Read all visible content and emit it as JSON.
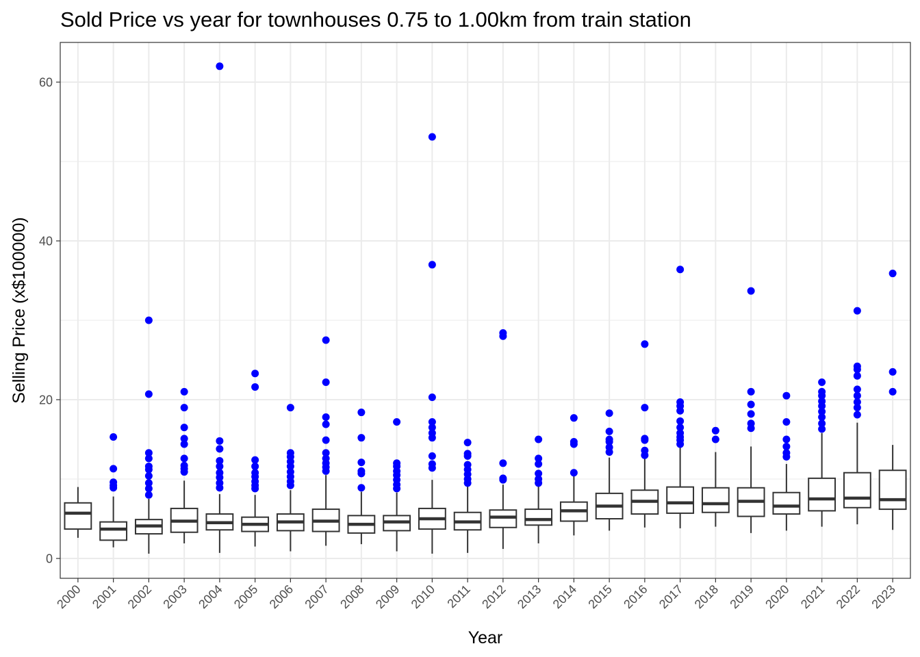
{
  "chart_data": {
    "type": "box",
    "title": "Sold Price vs year for townhouses 0.75 to 1.00km from train station",
    "xlabel": "Year",
    "ylabel": "Selling Price (x$100000)",
    "ylim": [
      -2.5,
      65
    ],
    "yticks": [
      0,
      20,
      40,
      60
    ],
    "y_minor_ticks": [
      10,
      30,
      50
    ],
    "grid": true,
    "legend": "none",
    "colors": {
      "box_line": "#333333",
      "outlier": "#0000ff",
      "grid": "#ebebeb",
      "panel_border": "#333333"
    },
    "categories": [
      "2000",
      "2001",
      "2002",
      "2003",
      "2004",
      "2005",
      "2006",
      "2007",
      "2008",
      "2009",
      "2010",
      "2011",
      "2012",
      "2013",
      "2014",
      "2015",
      "2016",
      "2017",
      "2018",
      "2019",
      "2020",
      "2021",
      "2022",
      "2023"
    ],
    "boxes": [
      {
        "year": "2000",
        "whisker_low": 2.6,
        "q1": 3.7,
        "median": 5.7,
        "q3": 7.0,
        "whisker_high": 9.0,
        "outliers": []
      },
      {
        "year": "2001",
        "whisker_low": 1.4,
        "q1": 2.3,
        "median": 3.7,
        "q3": 4.6,
        "whisker_high": 7.8,
        "outliers": [
          8.9,
          9.2,
          9.6,
          11.3,
          15.3
        ]
      },
      {
        "year": "2002",
        "whisker_low": 0.6,
        "q1": 3.1,
        "median": 4.1,
        "q3": 4.9,
        "whisker_high": 7.5,
        "outliers": [
          8.0,
          8.8,
          9.5,
          10.4,
          11.2,
          11.6,
          12.6,
          13.3,
          20.7,
          30.0
        ]
      },
      {
        "year": "2003",
        "whisker_low": 1.9,
        "q1": 3.3,
        "median": 4.7,
        "q3": 6.3,
        "whisker_high": 9.8,
        "outliers": [
          10.9,
          11.3,
          11.7,
          12.6,
          14.4,
          15.1,
          16.5,
          19.0,
          21.0
        ]
      },
      {
        "year": "2004",
        "whisker_low": 0.7,
        "q1": 3.6,
        "median": 4.5,
        "q3": 5.6,
        "whisker_high": 8.1,
        "outliers": [
          8.9,
          9.5,
          10.2,
          10.8,
          11.6,
          12.3,
          13.8,
          14.8,
          62.0
        ]
      },
      {
        "year": "2005",
        "whisker_low": 1.5,
        "q1": 3.4,
        "median": 4.3,
        "q3": 5.2,
        "whisker_high": 8.0,
        "outliers": [
          8.8,
          9.2,
          9.7,
          10.3,
          10.8,
          11.6,
          12.4,
          21.6,
          23.3
        ]
      },
      {
        "year": "2006",
        "whisker_low": 0.9,
        "q1": 3.5,
        "median": 4.6,
        "q3": 5.6,
        "whisker_high": 8.6,
        "outliers": [
          9.2,
          9.7,
          10.3,
          10.9,
          11.6,
          12.2,
          12.8,
          13.3,
          19.0
        ]
      },
      {
        "year": "2007",
        "whisker_low": 1.6,
        "q1": 3.4,
        "median": 4.7,
        "q3": 6.2,
        "whisker_high": 10.5,
        "outliers": [
          11.0,
          11.5,
          12.0,
          12.6,
          13.3,
          14.9,
          16.9,
          17.8,
          22.2,
          27.5
        ]
      },
      {
        "year": "2008",
        "whisker_low": 1.8,
        "q1": 3.2,
        "median": 4.3,
        "q3": 5.4,
        "whisker_high": 8.4,
        "outliers": [
          8.9,
          10.7,
          11.0,
          12.1,
          15.2,
          18.4
        ]
      },
      {
        "year": "2009",
        "whisker_low": 0.9,
        "q1": 3.5,
        "median": 4.6,
        "q3": 5.4,
        "whisker_high": 8.3,
        "outliers": [
          8.8,
          9.3,
          9.9,
          10.5,
          11.0,
          11.6,
          12.0,
          17.2
        ]
      },
      {
        "year": "2010",
        "whisker_low": 0.6,
        "q1": 3.7,
        "median": 5.0,
        "q3": 6.3,
        "whisker_high": 9.9,
        "outliers": [
          11.4,
          11.9,
          12.9,
          15.2,
          15.8,
          16.5,
          17.2,
          20.3,
          37.0,
          53.1
        ]
      },
      {
        "year": "2011",
        "whisker_low": 0.7,
        "q1": 3.6,
        "median": 4.6,
        "q3": 5.8,
        "whisker_high": 9.1,
        "outliers": [
          9.5,
          10.0,
          10.6,
          11.2,
          11.8,
          12.9,
          13.2,
          14.6
        ]
      },
      {
        "year": "2012",
        "whisker_low": 1.2,
        "q1": 3.9,
        "median": 5.2,
        "q3": 6.1,
        "whisker_high": 9.3,
        "outliers": [
          9.9,
          10.1,
          12.0,
          28.0,
          28.4
        ]
      },
      {
        "year": "2013",
        "whisker_low": 1.9,
        "q1": 4.2,
        "median": 4.9,
        "q3": 6.2,
        "whisker_high": 9.1,
        "outliers": [
          9.5,
          10.0,
          10.7,
          11.9,
          12.6,
          15.0
        ]
      },
      {
        "year": "2014",
        "whisker_low": 2.9,
        "q1": 4.7,
        "median": 6.0,
        "q3": 7.1,
        "whisker_high": 10.5,
        "outliers": [
          10.8,
          14.4,
          14.7,
          17.7
        ]
      },
      {
        "year": "2015",
        "whisker_low": 3.5,
        "q1": 5.0,
        "median": 6.6,
        "q3": 8.2,
        "whisker_high": 12.7,
        "outliers": [
          13.4,
          14.0,
          14.7,
          15.0,
          16.0,
          18.3
        ]
      },
      {
        "year": "2016",
        "whisker_low": 3.9,
        "q1": 5.6,
        "median": 7.2,
        "q3": 8.6,
        "whisker_high": 12.6,
        "outliers": [
          13.0,
          13.6,
          14.9,
          15.1,
          19.0,
          27.0
        ]
      },
      {
        "year": "2017",
        "whisker_low": 3.8,
        "q1": 5.7,
        "median": 7.0,
        "q3": 9.0,
        "whisker_high": 14.1,
        "outliers": [
          14.4,
          14.9,
          15.3,
          15.8,
          16.5,
          17.3,
          18.6,
          19.2,
          19.7,
          36.4
        ]
      },
      {
        "year": "2018",
        "whisker_low": 4.0,
        "q1": 5.8,
        "median": 6.9,
        "q3": 8.9,
        "whisker_high": 13.4,
        "outliers": [
          15.0,
          16.1
        ]
      },
      {
        "year": "2019",
        "whisker_low": 3.2,
        "q1": 5.3,
        "median": 7.2,
        "q3": 8.9,
        "whisker_high": 14.1,
        "outliers": [
          16.4,
          17.0,
          18.2,
          19.4,
          21.0,
          33.7
        ]
      },
      {
        "year": "2020",
        "whisker_low": 3.5,
        "q1": 5.6,
        "median": 6.6,
        "q3": 8.3,
        "whisker_high": 11.9,
        "outliers": [
          12.8,
          13.3,
          14.1,
          15.0,
          17.2,
          20.5
        ]
      },
      {
        "year": "2021",
        "whisker_low": 4.0,
        "q1": 6.0,
        "median": 7.5,
        "q3": 10.1,
        "whisker_high": 15.8,
        "outliers": [
          16.3,
          17.0,
          17.8,
          18.5,
          19.2,
          19.8,
          20.5,
          21.0,
          22.2
        ]
      },
      {
        "year": "2022",
        "whisker_low": 4.3,
        "q1": 6.4,
        "median": 7.6,
        "q3": 10.8,
        "whisker_high": 17.1,
        "outliers": [
          18.1,
          19.0,
          19.7,
          20.5,
          21.3,
          23.0,
          23.8,
          24.2,
          31.2
        ]
      },
      {
        "year": "2023",
        "whisker_low": 3.6,
        "q1": 6.2,
        "median": 7.4,
        "q3": 11.1,
        "whisker_high": 14.3,
        "outliers": [
          21.0,
          23.5,
          35.9
        ]
      }
    ]
  }
}
